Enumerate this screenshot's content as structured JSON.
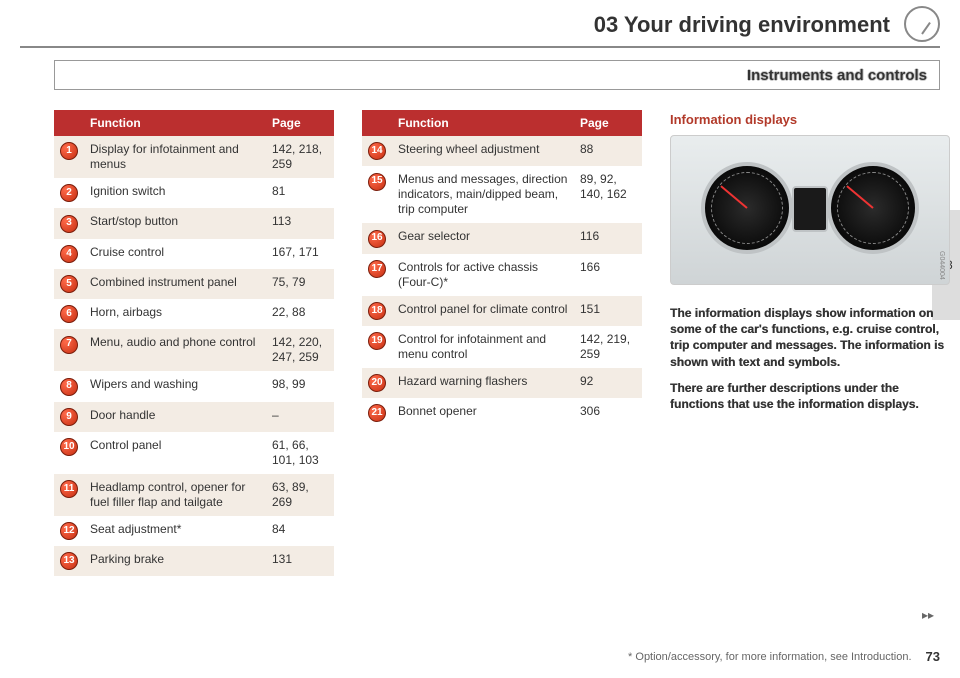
{
  "chapter": "03 Your driving environment",
  "subheader": "Instruments and controls",
  "side_tab": "03",
  "table_headers": {
    "fn": "Function",
    "pg": "Page"
  },
  "table1": [
    {
      "n": "1",
      "fn": "Display for infotainment and menus",
      "pg": "142, 218, 259"
    },
    {
      "n": "2",
      "fn": "Ignition switch",
      "pg": "81"
    },
    {
      "n": "3",
      "fn": "Start/stop button",
      "pg": "113"
    },
    {
      "n": "4",
      "fn": "Cruise control",
      "pg": "167, 171"
    },
    {
      "n": "5",
      "fn": "Combined instrument panel",
      "pg": "75, 79"
    },
    {
      "n": "6",
      "fn": "Horn, airbags",
      "pg": "22, 88"
    },
    {
      "n": "7",
      "fn": "Menu, audio and phone control",
      "pg": "142, 220, 247, 259"
    },
    {
      "n": "8",
      "fn": "Wipers and washing",
      "pg": "98, 99"
    },
    {
      "n": "9",
      "fn": "Door handle",
      "pg": "–"
    },
    {
      "n": "10",
      "fn": "Control panel",
      "pg": "61, 66, 101, 103"
    },
    {
      "n": "11",
      "fn": "Headlamp control, opener for fuel filler flap and tailgate",
      "pg": "63, 89, 269"
    },
    {
      "n": "12",
      "fn": "Seat adjustment*",
      "pg": "84"
    },
    {
      "n": "13",
      "fn": "Parking brake",
      "pg": "131"
    }
  ],
  "table2": [
    {
      "n": "14",
      "fn": "Steering wheel adjustment",
      "pg": "88"
    },
    {
      "n": "15",
      "fn": "Menus and messages, direction indicators, main/dipped beam, trip computer",
      "pg": "89, 92, 140, 162"
    },
    {
      "n": "16",
      "fn": "Gear selector",
      "pg": "116"
    },
    {
      "n": "17",
      "fn": "Controls for active chassis (Four-C)*",
      "pg": "166"
    },
    {
      "n": "18",
      "fn": "Control panel for climate control",
      "pg": "151"
    },
    {
      "n": "19",
      "fn": "Control for infotainment and menu control",
      "pg": "142, 219, 259"
    },
    {
      "n": "20",
      "fn": "Hazard warning flashers",
      "pg": "92"
    },
    {
      "n": "21",
      "fn": "Bonnet opener",
      "pg": "306"
    }
  ],
  "right": {
    "heading": "Information displays",
    "img_code": "G044004",
    "p1": "The information displays show information on some of the car's functions, e.g. cruise control, trip computer and messages. The information is shown with text and symbols.",
    "p2": "There are further descriptions under the functions that use the information displays."
  },
  "footer": {
    "note": "* Option/accessory, for more information, see Introduction.",
    "page": "73"
  }
}
